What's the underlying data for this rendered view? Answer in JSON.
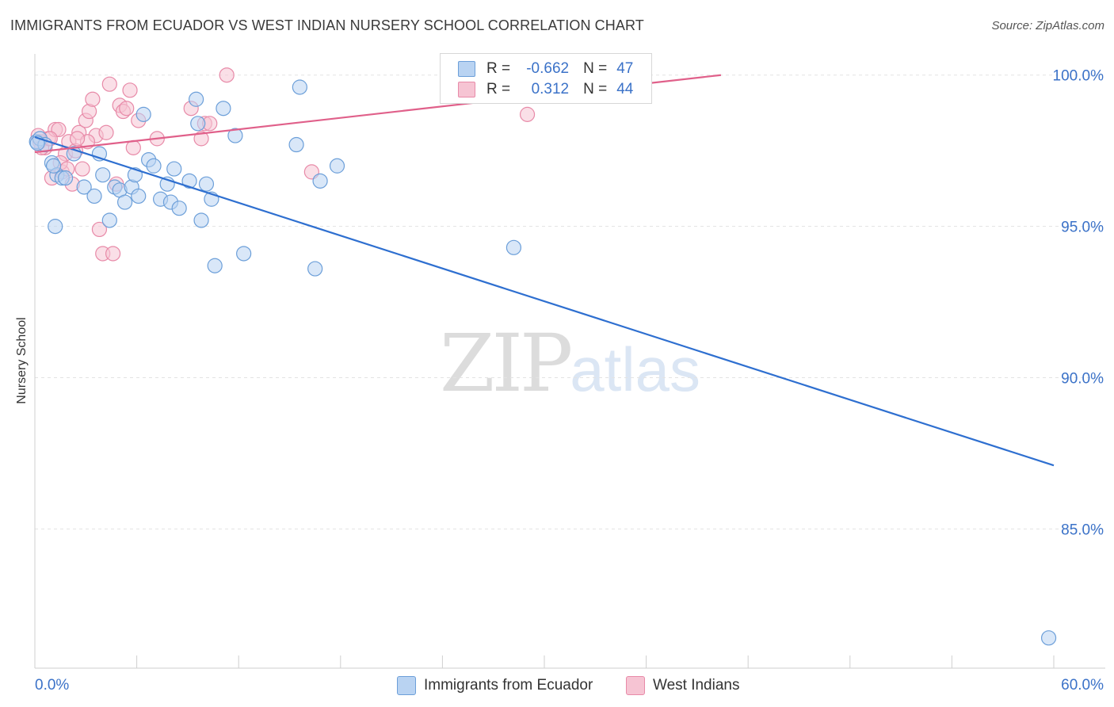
{
  "title": "IMMIGRANTS FROM ECUADOR VS WEST INDIAN NURSERY SCHOOL CORRELATION CHART",
  "source": "Source: ZipAtlas.com",
  "watermark": {
    "zip": "ZIP",
    "atlas": "atlas"
  },
  "legend": {
    "r_label": "R =",
    "n_label": "N =",
    "rows": [
      {
        "r": "-0.662",
        "n": "47"
      },
      {
        "r": "0.312",
        "n": "44"
      }
    ]
  },
  "colors": {
    "blue_fill": "#b9d3f2",
    "blue_stroke": "#6c9fd9",
    "blue_line": "#2e6fd0",
    "pink_fill": "#f6c4d3",
    "pink_stroke": "#e88aa8",
    "pink_line": "#e0608a",
    "tick_label": "#3b72c8",
    "grid": "#e3e3e3"
  },
  "chart_data": {
    "type": "scatter",
    "title": "IMMIGRANTS FROM ECUADOR VS WEST INDIAN NURSERY SCHOOL CORRELATION CHART",
    "xlabel": "",
    "ylabel": "Nursery School",
    "xlim": [
      0,
      60
    ],
    "ylim": [
      80.4,
      100.7
    ],
    "x_tick_labels": [
      "0.0%",
      "60.0%"
    ],
    "y_ticks": [
      85,
      90,
      95,
      100
    ],
    "y_tick_labels": [
      "85.0%",
      "90.0%",
      "95.0%",
      "100.0%"
    ],
    "series": [
      {
        "name": "Immigrants from Ecuador",
        "color": "blue",
        "points": [
          [
            0.1,
            97.8
          ],
          [
            0.3,
            97.9
          ],
          [
            0.6,
            97.7
          ],
          [
            1.0,
            97.1
          ],
          [
            1.3,
            96.7
          ],
          [
            1.6,
            96.6
          ],
          [
            1.8,
            96.6
          ],
          [
            1.2,
            95.0
          ],
          [
            2.3,
            97.4
          ],
          [
            2.9,
            96.3
          ],
          [
            3.5,
            96.0
          ],
          [
            3.8,
            97.4
          ],
          [
            4.0,
            96.7
          ],
          [
            4.4,
            95.2
          ],
          [
            4.7,
            96.3
          ],
          [
            5.0,
            96.2
          ],
          [
            5.3,
            95.8
          ],
          [
            5.7,
            96.3
          ],
          [
            5.9,
            96.7
          ],
          [
            6.1,
            96.0
          ],
          [
            6.4,
            98.7
          ],
          [
            6.7,
            97.2
          ],
          [
            7.0,
            97.0
          ],
          [
            7.4,
            95.9
          ],
          [
            7.8,
            96.4
          ],
          [
            8.0,
            95.8
          ],
          [
            8.2,
            96.9
          ],
          [
            8.5,
            95.6
          ],
          [
            9.1,
            96.5
          ],
          [
            9.5,
            99.2
          ],
          [
            9.6,
            98.4
          ],
          [
            9.8,
            95.2
          ],
          [
            10.1,
            96.4
          ],
          [
            10.4,
            95.9
          ],
          [
            10.6,
            93.7
          ],
          [
            11.1,
            98.9
          ],
          [
            11.8,
            98.0
          ],
          [
            12.3,
            94.1
          ],
          [
            15.4,
            97.7
          ],
          [
            15.6,
            99.6
          ],
          [
            16.5,
            93.6
          ],
          [
            16.8,
            96.5
          ],
          [
            17.8,
            97.0
          ],
          [
            28.2,
            94.3
          ],
          [
            59.7,
            81.4
          ],
          [
            0.15,
            97.75
          ],
          [
            1.1,
            97.0
          ]
        ]
      },
      {
        "name": "West Indians",
        "color": "pink",
        "points": [
          [
            0.3,
            97.8
          ],
          [
            0.6,
            97.6
          ],
          [
            0.8,
            97.9
          ],
          [
            1.0,
            96.6
          ],
          [
            1.2,
            98.2
          ],
          [
            1.4,
            98.2
          ],
          [
            1.6,
            96.8
          ],
          [
            1.8,
            97.4
          ],
          [
            2.0,
            97.8
          ],
          [
            2.2,
            96.4
          ],
          [
            2.4,
            97.5
          ],
          [
            2.6,
            98.1
          ],
          [
            2.8,
            96.9
          ],
          [
            3.0,
            98.5
          ],
          [
            3.2,
            98.8
          ],
          [
            3.4,
            99.2
          ],
          [
            3.6,
            98.0
          ],
          [
            3.8,
            94.9
          ],
          [
            4.0,
            94.1
          ],
          [
            4.2,
            98.1
          ],
          [
            4.4,
            99.7
          ],
          [
            4.6,
            94.1
          ],
          [
            4.8,
            96.4
          ],
          [
            5.0,
            99.0
          ],
          [
            5.2,
            98.8
          ],
          [
            5.4,
            98.9
          ],
          [
            5.6,
            99.5
          ],
          [
            5.8,
            97.6
          ],
          [
            6.1,
            98.5
          ],
          [
            7.2,
            97.9
          ],
          [
            9.2,
            98.9
          ],
          [
            9.8,
            97.9
          ],
          [
            10.0,
            98.4
          ],
          [
            10.3,
            98.4
          ],
          [
            11.3,
            100.0
          ],
          [
            16.3,
            96.8
          ],
          [
            29.0,
            98.7
          ],
          [
            0.4,
            97.6
          ],
          [
            0.9,
            97.9
          ],
          [
            1.5,
            97.1
          ],
          [
            1.9,
            96.9
          ],
          [
            3.1,
            97.8
          ],
          [
            2.5,
            97.9
          ],
          [
            0.2,
            98.0
          ]
        ]
      }
    ],
    "trendlines": [
      {
        "series": "Immigrants from Ecuador",
        "x": [
          0,
          60
        ],
        "y": [
          97.95,
          87.1
        ]
      },
      {
        "series": "West Indians",
        "x": [
          0,
          40.4
        ],
        "y": [
          97.45,
          100.0
        ]
      }
    ]
  }
}
